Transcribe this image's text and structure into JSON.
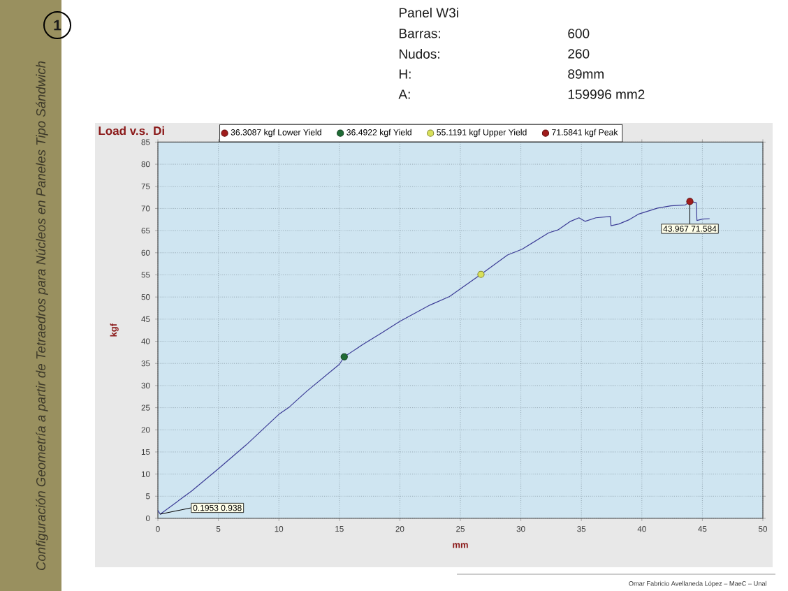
{
  "chart_data": {
    "type": "line",
    "title": "Load v.s. Di",
    "xlabel": "mm",
    "ylabel": "kgf",
    "xlim": [
      0,
      50
    ],
    "ylim": [
      0,
      85
    ],
    "xticks": [
      0,
      5,
      10,
      15,
      20,
      25,
      30,
      35,
      40,
      45,
      50
    ],
    "yticks": [
      0,
      5,
      10,
      15,
      20,
      25,
      30,
      35,
      40,
      45,
      50,
      55,
      60,
      65,
      70,
      75,
      80,
      85
    ],
    "grid": true,
    "legend": "top",
    "marker": "circle",
    "series": [
      {
        "color": "#3c3c96",
        "marker": "none",
        "x": [
          0,
          0.1953,
          2.8,
          5,
          7.3,
          10,
          10.8,
          12.3,
          15,
          15.4,
          16.9,
          18.5,
          20,
          22.5,
          24.1,
          26.7,
          28.9,
          30.1,
          32.3,
          33.1,
          34.1,
          34.8,
          35.3,
          36.2,
          37.4,
          37.45,
          38.1,
          38.9,
          39.7,
          41.3,
          42.4,
          43.6,
          43.967,
          44.5,
          44.55,
          45.0,
          45.6
        ],
        "values": [
          1.8,
          0.938,
          6.2,
          11.2,
          16.6,
          23.5,
          25.0,
          28.7,
          34.8,
          36.5,
          39.2,
          41.9,
          44.5,
          48.2,
          50.1,
          55.1,
          59.5,
          60.8,
          64.5,
          65.2,
          67.1,
          67.9,
          67.1,
          67.9,
          68.2,
          66.1,
          66.5,
          67.4,
          68.7,
          70.1,
          70.6,
          70.8,
          71.6,
          71.3,
          67.3,
          67.6,
          67.7
        ]
      },
      {
        "type": "scatter",
        "name": "36.3087 kgf Lower Yield",
        "color": "#a01c1c",
        "values": [
          null
        ]
      },
      {
        "type": "scatter",
        "name": "36.4922 kgf Yield",
        "color": "#1f6b35",
        "x": [
          15.4
        ],
        "values": [
          36.4922
        ]
      },
      {
        "type": "scatter",
        "name": "55.1191 kgf Upper Yield",
        "color": "#d8e05a",
        "x": [
          26.7
        ],
        "values": [
          55.1191
        ]
      },
      {
        "type": "scatter",
        "name": "71.5841 kgf Peak",
        "color": "#a01c1c",
        "x": [
          43.967
        ],
        "values": [
          71.5841
        ]
      }
    ],
    "annotations": [
      {
        "text": "0.1953 0.938",
        "x": 0.1953,
        "y": 0.938
      },
      {
        "text": "43.967 71.584",
        "x": 43.967,
        "y": 71.584
      },
      "Panel W3i",
      "Barras:",
      "600",
      "Nudos:",
      "260",
      "H:",
      "89mm",
      "A:",
      "159996 mm2",
      "Configuración Geometría a partir de Tetraedros para Núcleos en Paneles Tipo Sándwich",
      "1",
      "Omar Fabricio Avellaneda López – MaeC – Unal"
    ]
  }
}
